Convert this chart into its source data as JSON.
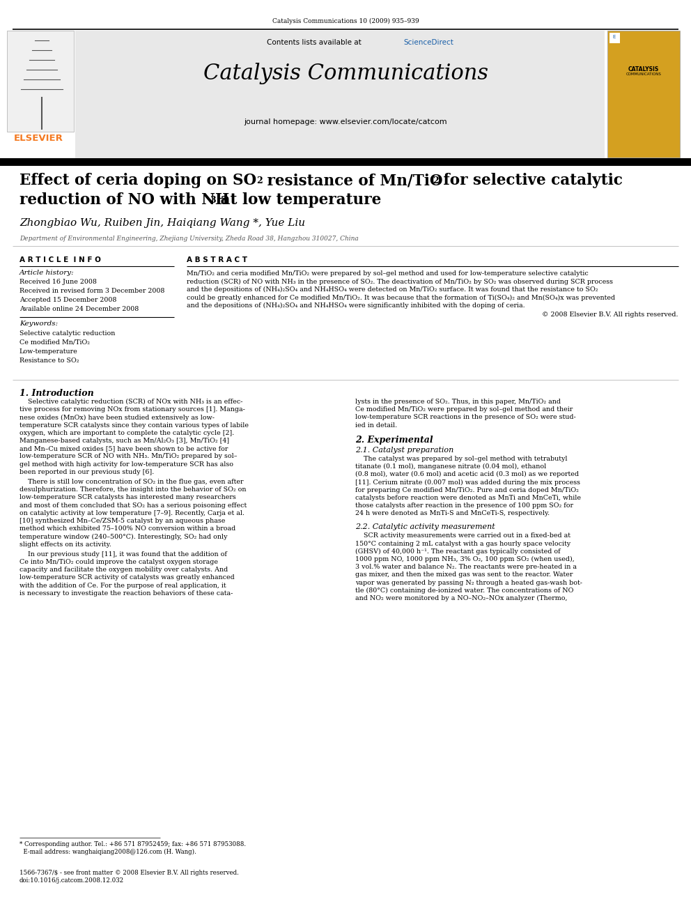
{
  "page_width": 9.92,
  "page_height": 13.23,
  "dpi": 100,
  "background_color": "#ffffff",
  "journal_ref": "Catalysis Communications 10 (2009) 935–939",
  "sciencedirect_color": "#1a5fa8",
  "elsevier_color": "#f47920",
  "black_bar_color": "#000000",
  "abstract_lines": [
    "Mn/TiO₂ and ceria modified Mn/TiO₂ were prepared by sol–gel method and used for low-temperature selective catalytic",
    "reduction (SCR) of NO with NH₃ in the presence of SO₂. The deactivation of Mn/TiO₂ by SO₂ was observed during SCR process",
    "and the depositions of (NH₄)₂SO₄ and NH₄HSO₄ were detected on Mn/TiO₂ surface. It was found that the resistance to SO₂",
    "could be greatly enhanced for Ce modified Mn/TiO₂. It was because that the formation of Ti(SO₄)₂ and Mn(SO₄)x was prevented",
    "and the depositions of (NH₄)₂SO₄ and NH₄HSO₄ were significantly inhibited with the doping of ceria."
  ],
  "copyright_text": "© 2008 Elsevier B.V. All rights reserved.",
  "article_history_items": [
    "Received 16 June 2008",
    "Received in revised form 3 December 2008",
    "Accepted 15 December 2008",
    "Available online 24 December 2008"
  ],
  "keywords_items": [
    "Selective catalytic reduction",
    "Ce modified Mn/TiO₂",
    "Low-temperature",
    "Resistance to SO₂"
  ],
  "intro_lines1": [
    "    Selective catalytic reduction (SCR) of NOx with NH₃ is an effec-",
    "tive process for removing NOx from stationary sources [1]. Manga-",
    "nese oxides (MnOx) have been studied extensively as low-",
    "temperature SCR catalysts since they contain various types of labile",
    "oxygen, which are important to complete the catalytic cycle [2].",
    "Manganese-based catalysts, such as Mn/Al₂O₃ [3], Mn/TiO₂ [4]",
    "and Mn–Cu mixed oxides [5] have been shown to be active for",
    "low-temperature SCR of NO with NH₃. Mn/TiO₂ prepared by sol–",
    "gel method with high activity for low-temperature SCR has also",
    "been reported in our previous study [6]."
  ],
  "intro_lines2": [
    "    There is still low concentration of SO₂ in the flue gas, even after",
    "desulphurization. Therefore, the insight into the behavior of SO₂ on",
    "low-temperature SCR catalysts has interested many researchers",
    "and most of them concluded that SO₂ has a serious poisoning effect",
    "on catalytic activity at low temperature [7–9]. Recently, Carja et al.",
    "[10] synthesized Mn–Ce/ZSM-5 catalyst by an aqueous phase",
    "method which exhibited 75–100% NO conversion within a broad",
    "temperature window (240–500°C). Interestingly, SO₂ had only",
    "slight effects on its activity."
  ],
  "intro_lines3": [
    "    In our previous study [11], it was found that the addition of",
    "Ce into Mn/TiO₂ could improve the catalyst oxygen storage",
    "capacity and facilitate the oxygen mobility over catalysts. And",
    "low-temperature SCR activity of catalysts was greatly enhanced",
    "with the addition of Ce. For the purpose of real application, it",
    "is necessary to investigate the reaction behaviors of these cata-"
  ],
  "right_intro_lines": [
    "lysts in the presence of SO₂. Thus, in this paper, Mn/TiO₂ and",
    "Ce modified Mn/TiO₂ were prepared by sol–gel method and their",
    "low-temperature SCR reactions in the presence of SO₂ were stud-",
    "ied in detail."
  ],
  "cat_prep_lines": [
    "    The catalyst was prepared by sol–gel method with tetrabutyl",
    "titanate (0.1 mol), manganese nitrate (0.04 mol), ethanol",
    "(0.8 mol), water (0.6 mol) and acetic acid (0.3 mol) as we reported",
    "[11]. Cerium nitrate (0.007 mol) was added during the mix process",
    "for preparing Ce modified Mn/TiO₂. Pure and ceria doped Mn/TiO₂",
    "catalysts before reaction were denoted as MnTi and MnCeTi, while",
    "those catalysts after reaction in the presence of 100 ppm SO₂ for",
    "24 h were denoted as MnTi-S and MnCeTi-S, respectively."
  ],
  "cat_act_lines": [
    "    SCR activity measurements were carried out in a fixed-bed at",
    "150°C containing 2 mL catalyst with a gas hourly space velocity",
    "(GHSV) of 40,000 h⁻¹. The reactant gas typically consisted of",
    "1000 ppm NO, 1000 ppm NH₃, 3% O₂, 100 ppm SO₂ (when used),",
    "3 vol.% water and balance N₂. The reactants were pre-heated in a",
    "gas mixer, and then the mixed gas was sent to the reactor. Water",
    "vapor was generated by passing N₂ through a heated gas-wash bot-",
    "tle (80°C) containing de-ionized water. The concentrations of NO",
    "and NO₂ were monitored by a NO–NO₂–NOx analyzer (Thermo,"
  ],
  "footnote_line1": "* Corresponding author. Tel.: +86 571 87952459; fax: +86 571 87953088.",
  "footnote_line2": "  E-mail address: wanghaiqiang2008@126.com (H. Wang).",
  "license_line1": "1566-7367/$ - see front matter © 2008 Elsevier B.V. All rights reserved.",
  "license_line2": "doi:10.1016/j.catcom.2008.12.032"
}
